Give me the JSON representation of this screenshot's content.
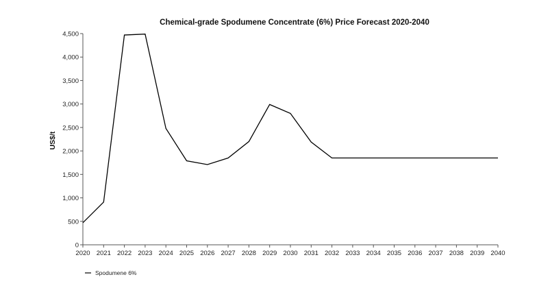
{
  "chart_data": {
    "type": "line",
    "title": "Chemical-grade Spodumene Concentrate (6%) Price Forecast 2020-2040",
    "xlabel": "",
    "ylabel": "US$/t",
    "ylim": [
      0,
      4500
    ],
    "yticks": [
      0,
      500,
      1000,
      1500,
      2000,
      2500,
      3000,
      3500,
      4000,
      4500
    ],
    "ytick_labels": [
      "0",
      "500",
      "1,000",
      "1,500",
      "2,000",
      "2,500",
      "3,000",
      "3,500",
      "4,000",
      "4,500"
    ],
    "x": [
      "2020",
      "2021",
      "2022",
      "2023",
      "2024",
      "2025",
      "2026",
      "2027",
      "2028",
      "2029",
      "2030",
      "2031",
      "2032",
      "2033",
      "2034",
      "2035",
      "2036",
      "2037",
      "2038",
      "2039",
      "2040"
    ],
    "grid": false,
    "legend_position": "bottom-left",
    "series": [
      {
        "name": "Spodumene 6%",
        "color": "#000000",
        "values": [
          470,
          910,
          4470,
          4490,
          2480,
          1790,
          1710,
          1850,
          2200,
          2990,
          2800,
          2190,
          1850,
          1850,
          1850,
          1850,
          1850,
          1850,
          1850,
          1850,
          1850
        ]
      }
    ]
  }
}
